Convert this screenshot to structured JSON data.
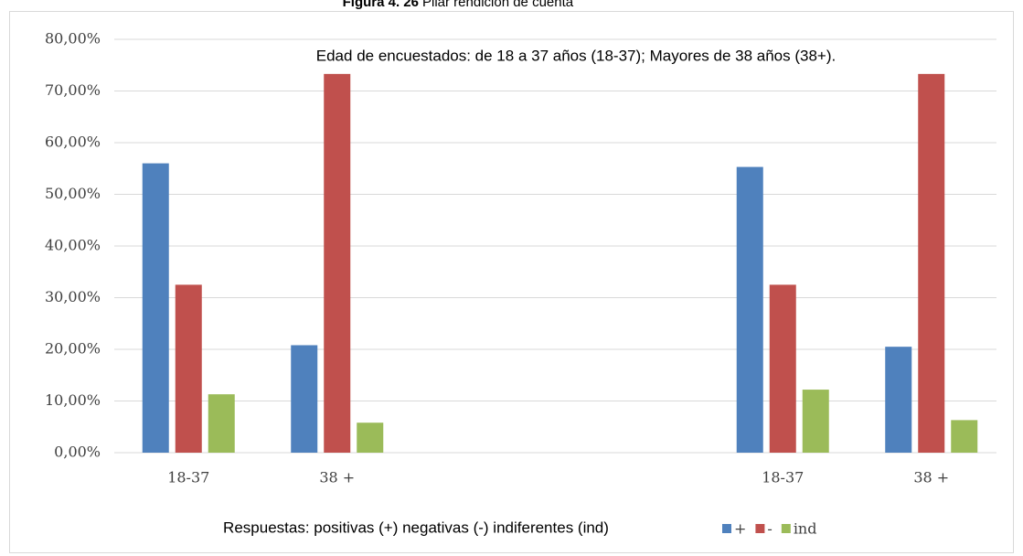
{
  "chart_data": {
    "type": "bar",
    "figure_label": "Figura 4. 26",
    "title": "Pilar rendición de cuenta",
    "annotation": "Edad de encuestados: de 18 a 37 años (18-37); Mayores de 38 años (38+).",
    "x_label": "Respuestas: positivas (+) negativas (-)  indiferentes (ind)",
    "categories": [
      "18-37",
      "38 +",
      null,
      null,
      "18-37",
      "38 +"
    ],
    "series": [
      {
        "name": "+",
        "color": "#4f81bd",
        "values": [
          56,
          20.8,
          null,
          null,
          55.3,
          20.5
        ]
      },
      {
        "name": "-",
        "color": "#c0504d",
        "values": [
          32.5,
          73.3,
          null,
          null,
          32.5,
          73.3
        ]
      },
      {
        "name": "ind",
        "color": "#9bbb59",
        "values": [
          11.3,
          5.8,
          null,
          null,
          12.2,
          6.3
        ]
      }
    ],
    "ylim": [
      0,
      80
    ],
    "yticks": [
      {
        "value": 0,
        "label": "0,00%"
      },
      {
        "value": 10,
        "label": "10,00%"
      },
      {
        "value": 20,
        "label": "20,00%"
      },
      {
        "value": 30,
        "label": "30,00%"
      },
      {
        "value": 40,
        "label": "40,00%"
      },
      {
        "value": 50,
        "label": "50,00%"
      },
      {
        "value": 60,
        "label": "60,00%"
      },
      {
        "value": 70,
        "label": "70,00%"
      },
      {
        "value": 80,
        "label": "80,00%"
      }
    ],
    "grid": true,
    "legend": "bottom"
  }
}
